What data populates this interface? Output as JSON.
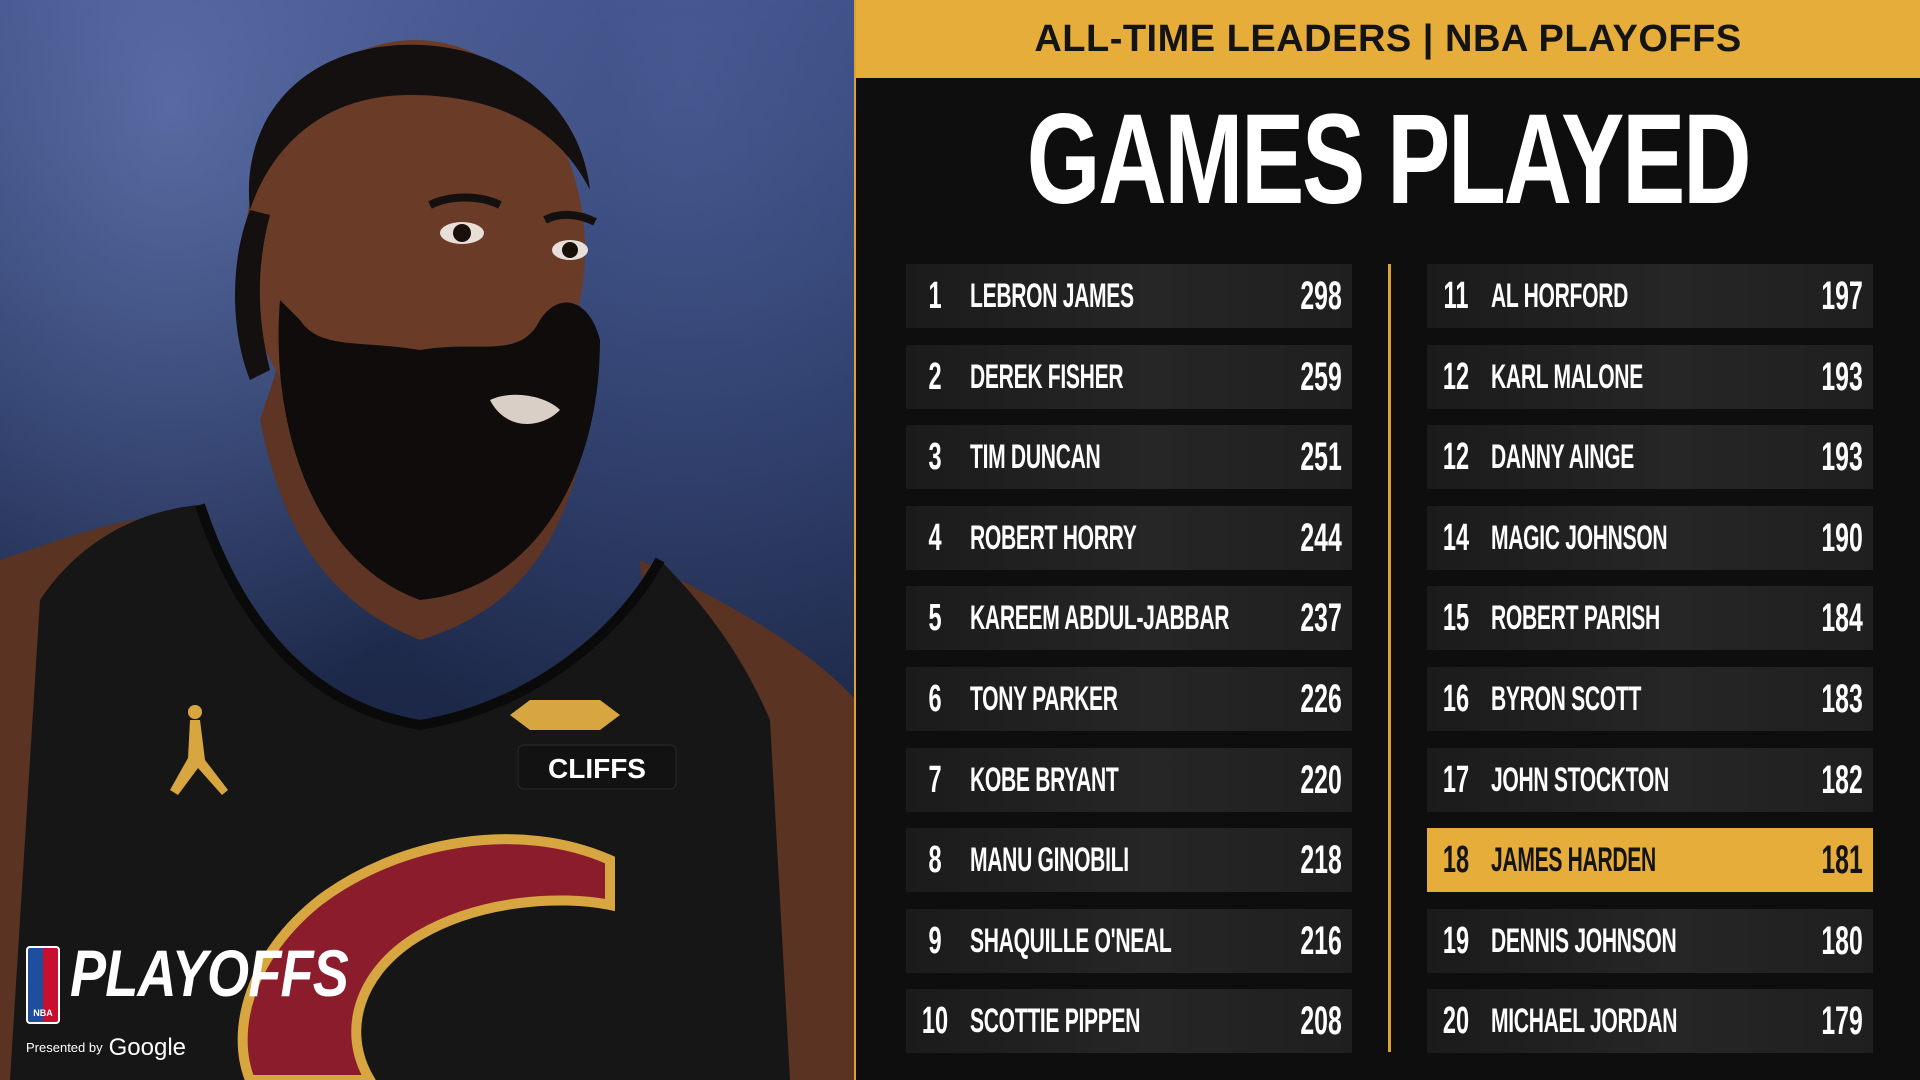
{
  "header": {
    "banner_text": "ALL-TIME LEADERS | NBA PLAYOFFS",
    "stat_title": "GAMES PLAYED"
  },
  "leaders_left": [
    {
      "rank": "1",
      "name": "LEBRON JAMES",
      "games": "298"
    },
    {
      "rank": "2",
      "name": "DEREK FISHER",
      "games": "259"
    },
    {
      "rank": "3",
      "name": "TIM DUNCAN",
      "games": "251"
    },
    {
      "rank": "4",
      "name": "ROBERT HORRY",
      "games": "244"
    },
    {
      "rank": "5",
      "name": "KAREEM ABDUL-JABBAR",
      "games": "237"
    },
    {
      "rank": "6",
      "name": "TONY PARKER",
      "games": "226"
    },
    {
      "rank": "7",
      "name": "KOBE BRYANT",
      "games": "220"
    },
    {
      "rank": "8",
      "name": "MANU GINOBILI",
      "games": "218"
    },
    {
      "rank": "9",
      "name": "SHAQUILLE O'NEAL",
      "games": "216"
    },
    {
      "rank": "10",
      "name": "SCOTTIE PIPPEN",
      "games": "208"
    }
  ],
  "leaders_right": [
    {
      "rank": "11",
      "name": "AL HORFORD",
      "games": "197"
    },
    {
      "rank": "12",
      "name": "KARL MALONE",
      "games": "193"
    },
    {
      "rank": "12",
      "name": "DANNY AINGE",
      "games": "193"
    },
    {
      "rank": "14",
      "name": "MAGIC JOHNSON",
      "games": "190"
    },
    {
      "rank": "15",
      "name": "ROBERT PARISH",
      "games": "184"
    },
    {
      "rank": "16",
      "name": "BYRON SCOTT",
      "games": "183"
    },
    {
      "rank": "17",
      "name": "JOHN STOCKTON",
      "games": "182"
    },
    {
      "rank": "18",
      "name": "JAMES HARDEN",
      "games": "181",
      "highlighted": true
    },
    {
      "rank": "19",
      "name": "DENNIS JOHNSON",
      "games": "180"
    },
    {
      "rank": "20",
      "name": "MICHAEL JORDAN",
      "games": "179"
    }
  ],
  "branding": {
    "nba_mark": "NBA",
    "playoffs_logo": "PLAYOFFS",
    "presented_by": "Presented by",
    "sponsor": "Google",
    "jersey_sponsor": "CLIFFS"
  },
  "colors": {
    "accent_gold": "#e6ad3b",
    "background": "#0e0e0e",
    "row_bg": "#222222",
    "text": "#ffffff",
    "jersey_wine": "#8a1c2c",
    "jersey_gold": "#d8a640"
  }
}
